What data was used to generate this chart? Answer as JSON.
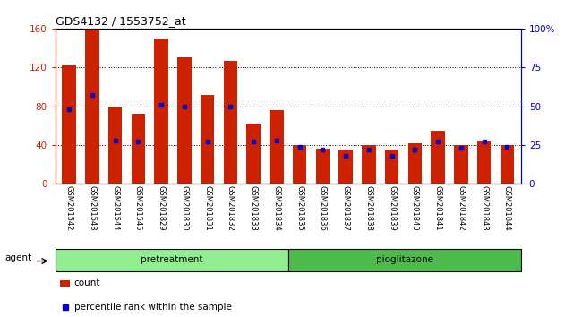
{
  "title": "GDS4132 / 1553752_at",
  "samples": [
    "GSM201542",
    "GSM201543",
    "GSM201544",
    "GSM201545",
    "GSM201829",
    "GSM201830",
    "GSM201831",
    "GSM201832",
    "GSM201833",
    "GSM201834",
    "GSM201835",
    "GSM201836",
    "GSM201837",
    "GSM201838",
    "GSM201839",
    "GSM201840",
    "GSM201841",
    "GSM201842",
    "GSM201843",
    "GSM201844"
  ],
  "count_values": [
    122,
    159,
    80,
    72,
    150,
    130,
    92,
    127,
    62,
    76,
    40,
    36,
    35,
    40,
    35,
    42,
    55,
    40,
    45,
    40
  ],
  "percentile_values": [
    48,
    57,
    28,
    27,
    51,
    50,
    27,
    50,
    27,
    28,
    24,
    22,
    18,
    22,
    18,
    22,
    27,
    23,
    27,
    24
  ],
  "group_colors_light": "#90EE90",
  "group_colors_dark": "#4CBB4C",
  "bar_color": "#cc2200",
  "dot_color": "#0000cc",
  "left_ylim": [
    0,
    160
  ],
  "right_ylim": [
    0,
    100
  ],
  "left_yticks": [
    0,
    40,
    80,
    120,
    160
  ],
  "right_yticks": [
    0,
    25,
    50,
    75,
    100
  ],
  "right_yticklabels": [
    "0",
    "25",
    "50",
    "75",
    "100%"
  ],
  "grid_values": [
    40,
    80,
    120
  ],
  "bg_color": "#c8c8c8",
  "legend_count_label": "count",
  "legend_percentile_label": "percentile rank within the sample"
}
